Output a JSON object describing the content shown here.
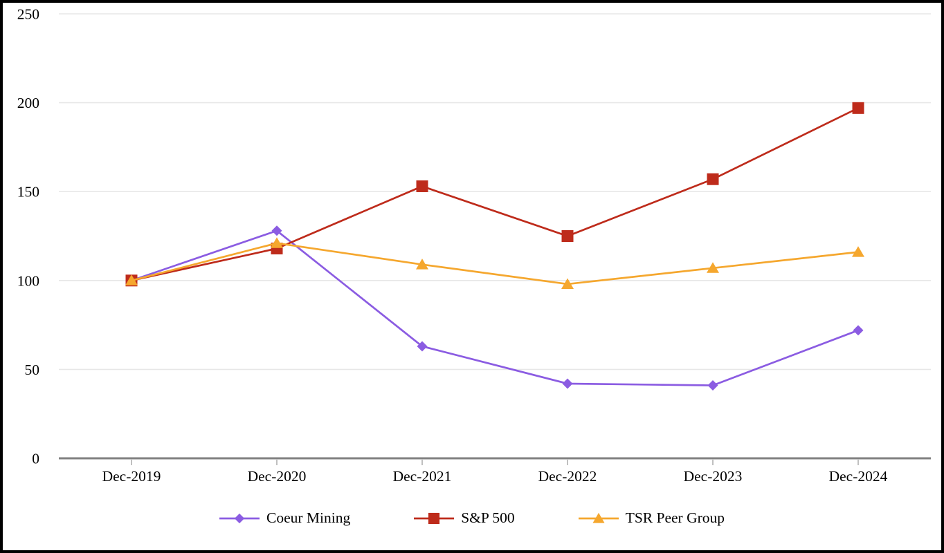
{
  "chart_data": {
    "type": "line",
    "categories": [
      "Dec-2019",
      "Dec-2020",
      "Dec-2021",
      "Dec-2022",
      "Dec-2023",
      "Dec-2024"
    ],
    "series": [
      {
        "name": "Coeur Mining",
        "marker": "diamond",
        "color": "#8B5CE2",
        "values": [
          100,
          128,
          63,
          42,
          41,
          72
        ]
      },
      {
        "name": "S&P 500",
        "marker": "square",
        "color": "#BE2B1B",
        "values": [
          100,
          118,
          153,
          125,
          157,
          197
        ]
      },
      {
        "name": "TSR Peer Group",
        "marker": "triangle",
        "color": "#F5A72E",
        "values": [
          100,
          121,
          109,
          98,
          107,
          116
        ]
      }
    ],
    "title": "",
    "xlabel": "",
    "ylabel": "",
    "ylim": [
      0,
      250
    ],
    "y_ticks": [
      0,
      50,
      100,
      150,
      200,
      250
    ],
    "grid": "horizontal",
    "legend_position": "bottom",
    "colors": {
      "grid_color": "#E7E7E7",
      "axis_color": "#808080",
      "tick_color": "#AAAAAA",
      "text_color": "#000000",
      "frame_border_color": "#000000",
      "background": "#FFFFFF"
    }
  }
}
